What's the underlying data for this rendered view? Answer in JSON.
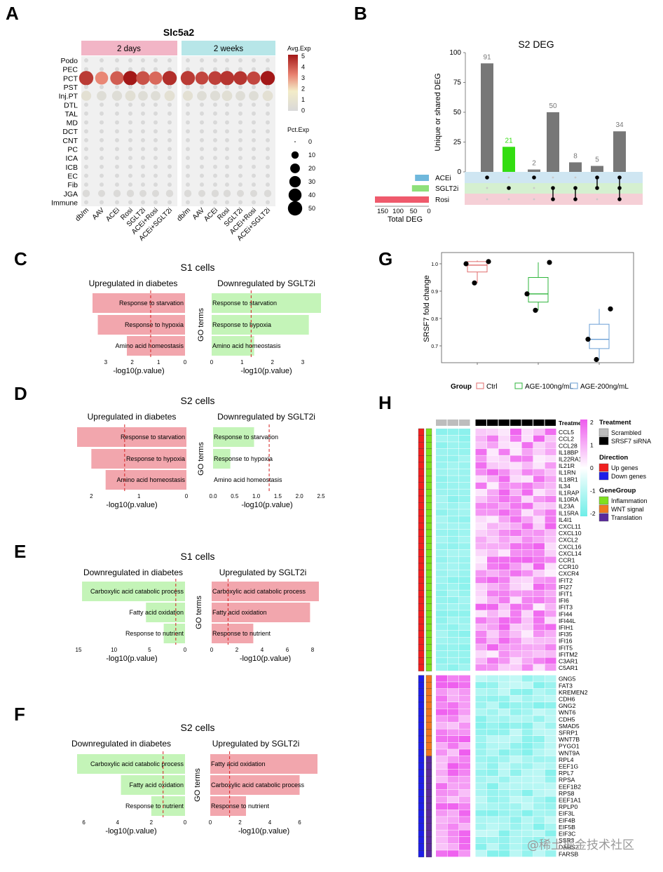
{
  "watermark": "@稀土掘金技术社区",
  "panels": {
    "A": {
      "letter": "A",
      "title": "Slc5a2",
      "facets": [
        "2 days",
        "2 weeks"
      ],
      "cell_types": [
        "Podo",
        "PEC",
        "PCT",
        "PST",
        "Inj.PT",
        "DTL",
        "TAL",
        "MD",
        "DCT",
        "CNT",
        "PC",
        "ICA",
        "ICB",
        "EC",
        "Fib",
        "JGA",
        "Immune"
      ],
      "groups": [
        "db/m",
        "AAV",
        "ACEi",
        "Rosi",
        "SGLT2i",
        "ACEi+Rosi",
        "ACEi+SGLT2i"
      ],
      "legend_exp_title": "Avg.Exp",
      "legend_exp_ticks": [
        "5",
        "4",
        "3",
        "2",
        "1",
        "0"
      ],
      "legend_pct_title": "Pct.Exp",
      "legend_pct_ticks": [
        "0",
        "10",
        "20",
        "30",
        "40",
        "50"
      ]
    },
    "B": {
      "letter": "B",
      "title": "S2 DEG",
      "ylabel": "Unique or shared DEG",
      "yticks": [
        "100",
        "75",
        "50",
        "25",
        "0"
      ],
      "sets": [
        "ACEi",
        "SGLT2i",
        "Rosi"
      ],
      "set_xlabel": "Total DEG",
      "set_xticks": [
        "150",
        "100",
        "50",
        "0"
      ]
    },
    "C": {
      "letter": "C",
      "title": "S1 cells",
      "left_title": "Upregulated in diabetes",
      "right_title": "Downregulated by SGLT2i",
      "terms": [
        "Response to starvation",
        "Response to hypoxia",
        "Amino acid homeostasis"
      ],
      "xlabel": "-log10(p.value)",
      "ylabel": "GO terms",
      "left_ticks": [
        "3",
        "2",
        "1",
        "0"
      ],
      "right_ticks": [
        "0",
        "1",
        "2",
        "3"
      ]
    },
    "D": {
      "letter": "D",
      "title": "S2 cells",
      "left_title": "Upregulated in diabetes",
      "right_title": "Downregulated by SGLT2i",
      "terms": [
        "Response to starvation",
        "Response to hypoxia",
        "Amino acid homeostasis"
      ],
      "xlabel": "-log10(p.value)",
      "ylabel": "GO terms",
      "left_ticks": [
        "2",
        "1",
        "0"
      ],
      "right_ticks": [
        "0.0",
        "0.5",
        "1.0",
        "1.5",
        "2.0",
        "2.5"
      ]
    },
    "E": {
      "letter": "E",
      "title": "S1 cells",
      "left_title": "Downregulated in diabetes",
      "right_title": "Upregulated by SGLT2i",
      "terms": [
        "Carboxylic acid catabolic process",
        "Fatty acid oxidation",
        "Response to nutrient"
      ],
      "xlabel": "-log10(p.value)",
      "ylabel": "GO terms",
      "left_ticks": [
        "15",
        "10",
        "5",
        "0"
      ],
      "right_ticks": [
        "0",
        "2",
        "4",
        "6",
        "8"
      ]
    },
    "F": {
      "letter": "F",
      "title": "S2 cells",
      "left_title": "Downregulated in diabetes",
      "right_title": "Upregulated by SGLT2i",
      "left_terms": [
        "Carboxylic acid catabolic process",
        "Fatty acid oxidation",
        "Response to nutrient"
      ],
      "right_terms": [
        "Fatty acid oxidation",
        "Carboxylic acid catabolic process",
        "Response to nutrient"
      ],
      "xlabel": "-log10(p.value)",
      "ylabel": "GO terms",
      "left_ticks": [
        "6",
        "4",
        "2",
        "0"
      ],
      "right_ticks": [
        "0",
        "2",
        "4",
        "6"
      ]
    },
    "G": {
      "letter": "G",
      "ylabel": "SRSF7 fold change",
      "yticks": [
        "1.0",
        "0.9",
        "0.8",
        "0.7"
      ],
      "legend_title": "Group",
      "legend_items": [
        "Ctrl",
        "AGE-100ng/mL",
        "AGE-200ng/mL"
      ]
    },
    "H": {
      "letter": "H",
      "treatment_label": "Treatment",
      "genes_up": [
        "CCL5",
        "CCL2",
        "CCL28",
        "IL18BP",
        "IL22RA1",
        "IL21R",
        "IL1RN",
        "IL18R1",
        "IL34",
        "IL1RAP",
        "IL10RA",
        "IL23A",
        "IL15RA",
        "IL4I1",
        "CXCL11",
        "CXCL10",
        "CXCL2",
        "CXCL16",
        "CXCL14",
        "CCR1",
        "CCR10",
        "CXCR4",
        "IFIT2",
        "IFI27",
        "IFIT1",
        "IFI6",
        "IFIT3",
        "IFI44",
        "IFI44L",
        "IFIH1",
        "IFI35",
        "IFI16",
        "IFIT5",
        "IFITM2",
        "C3AR1",
        "C5AR1"
      ],
      "genes_down": [
        "GNG5",
        "FAT3",
        "KREMEN2",
        "CDH6",
        "GNG2",
        "WNT6",
        "CDH5",
        "SMAD5",
        "SFRP1",
        "WNT7B",
        "PYGO1",
        "WNT9A",
        "RPL4",
        "EEF1G",
        "RPL7",
        "RPSA",
        "EEF1B2",
        "RPS8",
        "EEF1A1",
        "RPLP0",
        "EIF3L",
        "EIF4B",
        "EIF5B",
        "EIF3C",
        "SSR3",
        "DARS2",
        "FARSB"
      ],
      "scale_ticks": [
        "2",
        "1",
        "0",
        "-1",
        "-2"
      ],
      "legend": {
        "treatment_title": "Treatment",
        "treatment_items": [
          "Scrambled",
          "SRSF7 siRNA"
        ],
        "direction_title": "Direction",
        "direction_items": [
          "Up genes",
          "Down genes"
        ],
        "genegroup_title": "GeneGroup",
        "genegroup_items": [
          "Inflammation",
          "WNT signal",
          "Translation"
        ]
      }
    }
  },
  "chart_data": [
    {
      "panel": "A",
      "type": "dotplot",
      "title": "Slc5a2",
      "x_groups": [
        "db/m",
        "AAV",
        "ACEi",
        "Rosi",
        "SGLT2i",
        "ACEi+Rosi",
        "ACEi+SGLT2i"
      ],
      "facets": [
        "2 days",
        "2 weeks"
      ],
      "rows": {
        "PCT": {
          "avg_exp_2days": [
            4.4,
            3.1,
            3.8,
            5,
            4,
            3.6,
            4.6
          ],
          "avg_exp_2weeks": [
            4.4,
            4.2,
            4.3,
            4.5,
            4.5,
            4.2,
            5
          ],
          "pct_exp": [
            50,
            40,
            45,
            50,
            45,
            42,
            50
          ]
        },
        "Inj.PT": {
          "avg_exp": [
            0.6,
            0.3,
            0.3,
            0.5,
            0.3,
            0.3,
            0.6
          ],
          "pct_exp": [
            22,
            20,
            22,
            24,
            20,
            20,
            24
          ]
        },
        "JGA": {
          "avg_exp": [
            0.1,
            0.1,
            0.1,
            0.1,
            0.1,
            0.1,
            0.1
          ],
          "pct_exp": [
            10,
            9,
            10,
            10,
            9,
            9,
            10
          ]
        },
        "other": {
          "avg_exp": 0,
          "pct_exp": 2
        }
      },
      "legend_avg_exp": [
        0,
        5
      ],
      "legend_pct_exp": [
        0,
        50
      ]
    },
    {
      "panel": "B",
      "type": "upset",
      "title": "S2 DEG",
      "intersections": [
        {
          "sets": [
            "ACEi"
          ],
          "value": 91,
          "color": "#777777"
        },
        {
          "sets": [
            "SGLT2i"
          ],
          "value": 21,
          "color": "#33dd11"
        },
        {
          "sets": [
            "ACEi"
          ],
          "value": 2,
          "color": "#777777"
        },
        {
          "sets": [
            "SGLT2i",
            "Rosi"
          ],
          "value": 50,
          "color": "#777777"
        },
        {
          "sets": [
            "SGLT2i",
            "Rosi"
          ],
          "value": 8,
          "color": "#777777"
        },
        {
          "sets": [
            "ACEi",
            "SGLT2i"
          ],
          "value": 5,
          "color": "#777777"
        },
        {
          "sets": [
            "ACEi",
            "SGLT2i",
            "Rosi"
          ],
          "value": 34,
          "color": "#777777"
        }
      ],
      "set_sizes": {
        "ACEi": 45,
        "SGLT2i": 55,
        "Rosi": 175
      },
      "ylim": [
        0,
        100
      ]
    },
    {
      "panel": "C",
      "type": "bar",
      "left_values": [
        3.5,
        3.3,
        2.2
      ],
      "right_values": [
        3.6,
        3.2,
        1.4
      ],
      "left_lim": [
        3.5,
        0
      ],
      "right_lim": [
        0,
        3.6
      ],
      "threshold": 1.3
    },
    {
      "panel": "D",
      "type": "bar",
      "left_values": [
        2.3,
        2.0,
        1.7
      ],
      "right_values": [
        0.95,
        0.4,
        0.0
      ],
      "left_lim": [
        2.3,
        0
      ],
      "right_lim": [
        0,
        2.5
      ],
      "threshold": 1.3
    },
    {
      "panel": "E",
      "type": "bar",
      "left_values": [
        14.5,
        5.5,
        3.0
      ],
      "right_values": [
        8.5,
        7.8,
        3.3
      ],
      "left_lim": [
        15,
        0
      ],
      "right_lim": [
        0,
        8.5
      ],
      "threshold": 1.3
    },
    {
      "panel": "F",
      "type": "bar",
      "left_values": [
        6.4,
        3.8,
        2.0
      ],
      "right_values": [
        7.2,
        6.0,
        2.4
      ],
      "left_lim": [
        6.4,
        0
      ],
      "right_lim": [
        0,
        7.2
      ],
      "threshold": 1.3
    },
    {
      "panel": "G",
      "type": "box",
      "ylim": [
        0.65,
        1.05
      ],
      "groups": [
        {
          "name": "Ctrl",
          "q1": 0.97,
          "median": 0.995,
          "q3": 1.008,
          "lo": 0.93,
          "hi": 1.012,
          "points": [
            1.0,
            0.93,
            1.008
          ],
          "color": "#e06d6d"
        },
        {
          "name": "AGE-100ng/mL",
          "q1": 0.86,
          "median": 0.89,
          "q3": 0.95,
          "lo": 0.83,
          "hi": 1.005,
          "points": [
            0.89,
            0.83,
            1.005
          ],
          "color": "#2fb53c"
        },
        {
          "name": "AGE-200ng/mL",
          "q1": 0.69,
          "median": 0.724,
          "q3": 0.779,
          "lo": 0.65,
          "hi": 0.835,
          "points": [
            0.724,
            0.65,
            0.835
          ],
          "color": "#6a9fd6"
        }
      ]
    },
    {
      "panel": "H",
      "type": "heatmap",
      "columns": [
        "Scrambled",
        "Scrambled",
        "Scrambled",
        "SRSF7 siRNA",
        "SRSF7 siRNA",
        "SRSF7 siRNA",
        "SRSF7 siRNA",
        "SRSF7 siRNA",
        "SRSF7 siRNA",
        "SRSF7 siRNA"
      ],
      "range": [
        -2,
        2
      ],
      "up_pattern": "low in Scrambled, high in SRSF7 siRNA",
      "down_pattern": "high in Scrambled, low in SRSF7 siRNA"
    }
  ]
}
